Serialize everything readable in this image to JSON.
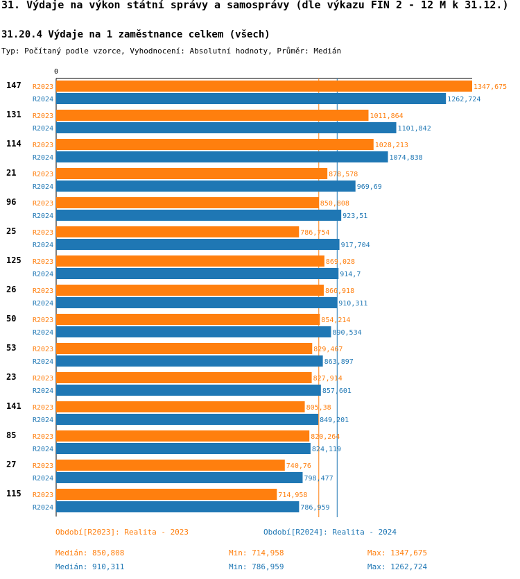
{
  "title": "31. Výdaje na výkon státní správy a samosprávy (dle výkazu FIN 2 - 12 M k 31.12.)",
  "subtitle": "31.20.4 Výdaje na 1 zaměstnance celkem (všech)",
  "type_line": "Typ: Počítaný podle vzorce, Vyhodnocení: Absolutní hodnoty, Průměr: Medián",
  "colors": {
    "r2023": "#ff7f0e",
    "r2024": "#1f77b4"
  },
  "chart_data": {
    "type": "bar",
    "orientation": "horizontal",
    "xlim": [
      0,
      1347.675
    ],
    "x_tick_labels": [
      "0"
    ],
    "grid": false,
    "categories": [
      "147",
      "131",
      "114",
      "21",
      "96",
      "25",
      "125",
      "26",
      "50",
      "53",
      "23",
      "141",
      "85",
      "27",
      "115"
    ],
    "series": [
      {
        "name": "R2023",
        "values": [
          1347.675,
          1011.864,
          1028.213,
          878.578,
          850.808,
          786.754,
          869.028,
          866.918,
          854.214,
          829.467,
          827.914,
          805.38,
          820.264,
          740.76,
          714.958
        ],
        "labels": [
          "1347,675",
          "1011,864",
          "1028,213",
          "878,578",
          "850,808",
          "786,754",
          "869,028",
          "866,918",
          "854,214",
          "829,467",
          "827,914",
          "805,38",
          "820,264",
          "740,76",
          "714,958"
        ]
      },
      {
        "name": "R2024",
        "values": [
          1262.724,
          1101.842,
          1074.838,
          969.69,
          923.51,
          917.704,
          914.7,
          910.311,
          890.534,
          863.897,
          857.601,
          849.201,
          824.119,
          798.477,
          786.959
        ],
        "labels": [
          "1262,724",
          "1101,842",
          "1074,838",
          "969,69",
          "923,51",
          "917,704",
          "914,7",
          "910,311",
          "890,534",
          "863,897",
          "857,601",
          "849,201",
          "824,119",
          "798,477",
          "786,959"
        ]
      }
    ],
    "reference_lines": [
      {
        "series": "R2023",
        "stat": "median",
        "value": 850.808
      },
      {
        "series": "R2024",
        "stat": "median",
        "value": 910.311
      }
    ]
  },
  "legend": {
    "r2023": "Období[R2023]: Realita - 2023",
    "r2024": "Období[R2024]: Realita - 2024"
  },
  "stats": {
    "r2023": {
      "median": "Medián: 850,808",
      "min": "Min: 714,958",
      "max": "Max: 1347,675"
    },
    "r2024": {
      "median": "Medián: 910,311",
      "min": "Min: 786,959",
      "max": "Max: 1262,724"
    }
  }
}
